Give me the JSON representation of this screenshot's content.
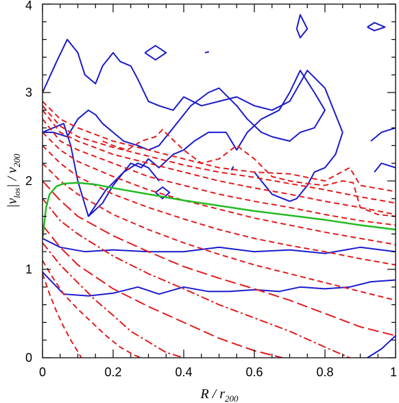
{
  "chart_data": {
    "type": "line",
    "xlabel": "R / r200",
    "ylabel": "|vlos| / v200",
    "xlabel_parts": {
      "main": "R / r",
      "sub": "200"
    },
    "ylabel_parts": {
      "abs_open": "|v",
      "sub1": "los",
      "abs_close": "| / v",
      "sub2": "200"
    },
    "xlim": [
      0,
      1
    ],
    "ylim": [
      0,
      4
    ],
    "x_ticks": [
      "0",
      "0.2",
      "0.4",
      "0.6",
      "0.8",
      "1"
    ],
    "y_ticks": [
      "0",
      "1",
      "2",
      "3",
      "4"
    ],
    "grid": false,
    "colors": {
      "contours": "#1a1acc",
      "caustics": "#e31a1c",
      "escape": "#22bb22"
    },
    "series": [
      {
        "kind": "contour",
        "style": "solid-blue",
        "x": [
          0.0,
          0.05,
          0.12,
          0.2,
          0.3,
          0.4,
          0.5,
          0.6,
          0.7,
          0.8,
          0.9,
          1.0
        ],
        "y": [
          1.35,
          1.25,
          1.2,
          1.22,
          1.2,
          1.2,
          1.25,
          1.2,
          1.22,
          1.18,
          1.25,
          1.2
        ]
      },
      {
        "kind": "contour",
        "style": "solid-blue",
        "x": [
          0.0,
          0.06,
          0.13,
          0.2,
          0.27,
          0.33,
          0.4,
          0.47,
          0.53,
          0.6,
          0.67,
          0.73,
          0.8,
          0.87,
          0.93,
          1.0
        ],
        "y": [
          0.97,
          0.72,
          0.7,
          0.73,
          0.8,
          0.72,
          0.8,
          0.75,
          0.75,
          0.77,
          0.75,
          0.8,
          0.78,
          0.8,
          0.86,
          0.88
        ]
      },
      {
        "kind": "contour",
        "style": "solid-blue",
        "x": [
          0.0,
          0.03,
          0.06,
          0.08,
          0.1,
          0.13,
          0.17,
          0.2,
          0.25,
          0.28,
          0.3,
          0.33,
          0.37,
          0.4,
          0.43,
          0.47,
          0.52,
          0.55,
          0.58,
          0.62,
          0.67,
          0.7,
          0.73,
          0.77,
          0.8,
          0.77,
          0.73,
          0.7,
          0.65,
          0.62,
          0.58,
          0.55,
          0.5,
          0.47,
          0.42,
          0.4,
          0.37,
          0.33,
          0.3,
          0.27,
          0.23,
          0.2,
          0.17,
          0.15,
          0.13,
          0.1,
          0.07,
          0.03,
          0.0
        ],
        "y": [
          2.55,
          2.6,
          2.65,
          2.4,
          2.0,
          1.6,
          1.75,
          1.95,
          2.2,
          2.15,
          2.25,
          2.15,
          2.3,
          2.35,
          2.45,
          2.55,
          2.55,
          2.35,
          2.55,
          2.7,
          2.8,
          3.0,
          3.25,
          3.0,
          2.8,
          2.6,
          2.55,
          2.45,
          2.5,
          2.55,
          2.7,
          2.85,
          3.05,
          3.0,
          2.85,
          2.75,
          2.6,
          2.4,
          2.35,
          2.4,
          2.45,
          2.55,
          2.65,
          2.75,
          2.8,
          2.7,
          2.5,
          2.55,
          2.55
        ]
      },
      {
        "kind": "contour",
        "style": "solid-blue",
        "x": [
          0.0,
          0.04,
          0.07,
          0.1,
          0.12,
          0.15,
          0.17,
          0.2,
          0.22,
          0.25,
          0.27,
          0.3,
          0.33,
          0.37,
          0.4,
          0.45,
          0.5,
          0.55,
          0.6,
          0.65,
          0.7,
          0.75,
          0.8,
          0.85
        ],
        "y": [
          3.0,
          3.35,
          3.6,
          3.45,
          3.2,
          3.1,
          3.3,
          3.45,
          3.35,
          3.3,
          3.15,
          2.9,
          2.85,
          2.8,
          2.95,
          2.85,
          2.9,
          2.95,
          2.85,
          2.8,
          2.9,
          3.25,
          3.05,
          2.55
        ]
      },
      {
        "kind": "contour",
        "style": "solid-blue",
        "x": [
          0.6,
          0.65,
          0.7,
          0.72,
          0.75,
          0.77,
          0.8,
          0.83,
          0.85
        ],
        "y": [
          2.1,
          1.85,
          1.77,
          1.8,
          1.95,
          2.1,
          2.15,
          2.3,
          2.55
        ]
      },
      {
        "kind": "contour",
        "style": "solid-blue",
        "x": [
          0.13,
          0.18,
          0.23,
          0.27,
          0.3,
          0.33
        ],
        "y": [
          1.6,
          1.9,
          2.1,
          2.2,
          2.15,
          2.0
        ]
      },
      {
        "kind": "contour",
        "style": "solid-blue",
        "x": [
          0.32,
          0.34,
          0.36,
          0.34,
          0.32
        ],
        "y": [
          1.87,
          1.93,
          1.87,
          1.8,
          1.87
        ]
      },
      {
        "kind": "contour",
        "style": "solid-blue",
        "x": [
          0.29,
          0.32,
          0.35,
          0.32,
          0.29
        ],
        "y": [
          3.45,
          3.53,
          3.45,
          3.37,
          3.45
        ]
      },
      {
        "kind": "contour",
        "style": "solid-blue",
        "x": [
          0.72,
          0.73,
          0.75,
          0.73,
          0.72
        ],
        "y": [
          3.72,
          3.88,
          3.72,
          3.62,
          3.72
        ]
      },
      {
        "kind": "contour",
        "style": "solid-blue",
        "x": [
          0.92,
          0.94,
          0.97,
          0.94,
          0.92
        ],
        "y": [
          3.74,
          3.79,
          3.74,
          3.7,
          3.74
        ]
      },
      {
        "kind": "contour",
        "style": "solid-blue",
        "x": [
          0.93,
          0.96,
          1.0
        ],
        "y": [
          2.45,
          2.55,
          2.6
        ]
      },
      {
        "kind": "contour",
        "style": "solid-blue",
        "x": [
          0.94,
          0.96,
          1.0
        ],
        "y": [
          2.1,
          2.2,
          2.15
        ]
      },
      {
        "kind": "contour",
        "style": "solid-blue",
        "x": [
          0.92,
          0.96,
          1.0
        ],
        "y": [
          0.0,
          0.1,
          0.25
        ]
      },
      {
        "kind": "contour",
        "style": "solid-blue",
        "x": [
          0.46,
          0.47,
          0.46
        ],
        "y": [
          3.45,
          3.46,
          3.45
        ]
      },
      {
        "kind": "contour",
        "style": "solid-blue",
        "x": [
          0.535,
          0.54,
          0.535
        ],
        "y": [
          2.12,
          2.16,
          2.12
        ]
      },
      {
        "kind": "caustic",
        "style": "dash",
        "x": [
          0.0,
          0.05,
          0.1,
          0.2,
          0.3,
          0.4,
          0.5,
          0.6,
          0.7,
          0.8,
          0.87,
          0.9,
          1.0
        ],
        "y": [
          2.9,
          2.7,
          2.6,
          2.45,
          2.35,
          2.25,
          2.15,
          2.1,
          2.08,
          2.0,
          2.15,
          1.95,
          1.88
        ]
      },
      {
        "kind": "caustic",
        "style": "dash",
        "x": [
          0.0,
          0.05,
          0.1,
          0.2,
          0.3,
          0.4,
          0.5,
          0.6,
          0.7,
          0.8,
          0.9,
          1.0
        ],
        "y": [
          2.85,
          2.62,
          2.5,
          2.38,
          2.28,
          2.18,
          2.1,
          2.04,
          1.97,
          1.9,
          1.82,
          1.75
        ]
      },
      {
        "kind": "caustic",
        "style": "dash",
        "x": [
          0.0,
          0.05,
          0.1,
          0.2,
          0.3,
          0.4,
          0.5,
          0.6,
          0.7,
          0.8,
          0.9,
          1.0
        ],
        "y": [
          2.8,
          2.55,
          2.45,
          2.3,
          2.2,
          2.1,
          2.0,
          1.92,
          1.85,
          1.77,
          1.7,
          1.62
        ]
      },
      {
        "kind": "caustic",
        "style": "dash",
        "x": [
          0.0,
          0.05,
          0.1,
          0.2,
          0.3,
          0.4,
          0.5,
          0.6,
          0.7,
          0.8,
          0.9,
          1.0
        ],
        "y": [
          2.7,
          2.45,
          2.35,
          2.2,
          2.05,
          1.95,
          1.85,
          1.77,
          1.7,
          1.62,
          1.55,
          1.5
        ]
      },
      {
        "kind": "caustic",
        "style": "dash",
        "x": [
          0.0,
          0.05,
          0.1,
          0.2,
          0.3,
          0.4,
          0.5,
          0.6,
          0.7,
          0.8,
          0.9,
          1.0
        ],
        "y": [
          2.55,
          2.35,
          2.22,
          2.05,
          1.9,
          1.78,
          1.68,
          1.58,
          1.5,
          1.42,
          1.35,
          1.28
        ]
      },
      {
        "kind": "caustic",
        "style": "dash",
        "x": [
          0.0,
          0.05,
          0.1,
          0.2,
          0.3,
          0.4,
          0.5,
          0.6,
          0.7,
          0.8,
          0.9,
          1.0
        ],
        "y": [
          2.4,
          2.2,
          2.05,
          1.85,
          1.7,
          1.57,
          1.45,
          1.35,
          1.27,
          1.2,
          1.12,
          1.05
        ]
      },
      {
        "kind": "caustic",
        "style": "dash",
        "x": [
          0.0,
          0.05,
          0.1,
          0.2,
          0.3,
          0.4,
          0.5,
          0.6,
          0.7,
          0.8,
          0.9,
          1.0
        ],
        "y": [
          2.2,
          2.0,
          1.85,
          1.62,
          1.45,
          1.3,
          1.17,
          1.05,
          0.95,
          0.85,
          0.75,
          0.65
        ]
      },
      {
        "kind": "caustic",
        "style": "long-dash",
        "x": [
          0.0,
          0.05,
          0.1,
          0.2,
          0.3,
          0.4,
          0.5,
          0.6,
          0.7,
          0.8,
          0.9,
          1.0
        ],
        "y": [
          2.0,
          1.78,
          1.6,
          1.38,
          1.2,
          1.03,
          0.9,
          0.78,
          0.65,
          0.5,
          0.35,
          0.25
        ]
      },
      {
        "kind": "caustic",
        "style": "dash-dot",
        "x": [
          0.0,
          0.05,
          0.1,
          0.2,
          0.3,
          0.4,
          0.5,
          0.6,
          0.7,
          0.8,
          0.87
        ],
        "y": [
          1.8,
          1.55,
          1.4,
          1.15,
          0.95,
          0.78,
          0.6,
          0.45,
          0.3,
          0.12,
          0.0
        ]
      },
      {
        "kind": "caustic",
        "style": "long-dash",
        "x": [
          0.0,
          0.05,
          0.1,
          0.2,
          0.3,
          0.4,
          0.5,
          0.6,
          0.68
        ],
        "y": [
          1.5,
          1.25,
          1.05,
          0.78,
          0.58,
          0.4,
          0.22,
          0.08,
          0.0
        ]
      },
      {
        "kind": "caustic",
        "style": "dash-dot",
        "x": [
          0.0,
          0.05,
          0.1,
          0.15,
          0.2,
          0.25,
          0.3,
          0.35,
          0.4
        ],
        "y": [
          1.3,
          1.05,
          0.85,
          0.65,
          0.48,
          0.3,
          0.18,
          0.06,
          0.0
        ]
      },
      {
        "kind": "caustic",
        "style": "dash",
        "x": [
          0.0,
          0.03,
          0.06,
          0.1,
          0.14,
          0.18,
          0.22,
          0.26,
          0.28
        ],
        "y": [
          1.1,
          0.9,
          0.72,
          0.55,
          0.4,
          0.25,
          0.12,
          0.03,
          0.0
        ]
      },
      {
        "kind": "caustic",
        "style": "dash",
        "x": [
          0.0,
          0.02,
          0.04,
          0.06,
          0.08,
          0.1,
          0.11
        ],
        "y": [
          0.95,
          0.72,
          0.52,
          0.35,
          0.2,
          0.07,
          0.0
        ]
      },
      {
        "kind": "caustic",
        "style": "dash",
        "x": [
          0.17,
          0.2,
          0.24,
          0.28,
          0.32,
          0.34,
          0.36,
          0.4,
          0.45,
          0.5,
          0.55,
          0.6,
          0.65,
          0.7,
          0.75,
          0.8,
          0.85,
          0.88,
          0.9,
          0.95,
          1.0
        ],
        "y": [
          2.45,
          2.4,
          2.35,
          2.45,
          2.5,
          2.58,
          2.5,
          2.35,
          2.2,
          2.25,
          2.4,
          2.25,
          2.05,
          2.0,
          1.97,
          1.95,
          2.0,
          1.98,
          1.7,
          1.62,
          1.6
        ]
      },
      {
        "kind": "escape",
        "style": "solid-green",
        "x": [
          0.0,
          0.01,
          0.02,
          0.04,
          0.06,
          0.1,
          0.15,
          0.2,
          0.3,
          0.4,
          0.5,
          0.6,
          0.7,
          0.8,
          0.9,
          1.0
        ],
        "y": [
          1.35,
          1.7,
          1.85,
          1.94,
          1.97,
          1.98,
          1.96,
          1.92,
          1.85,
          1.78,
          1.72,
          1.66,
          1.61,
          1.56,
          1.5,
          1.45
        ]
      }
    ]
  }
}
